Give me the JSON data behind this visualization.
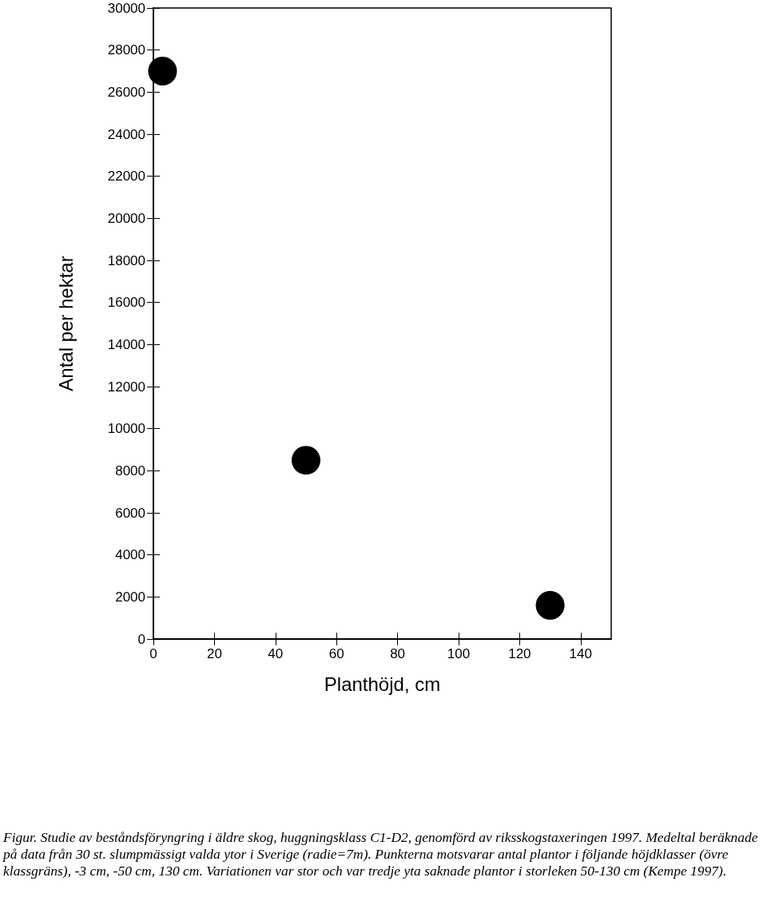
{
  "chart_data": {
    "type": "scatter",
    "xlabel": "Planthöjd, cm",
    "ylabel": "Antal per hektar",
    "x": [
      3,
      50,
      130
    ],
    "series": [
      {
        "color": "#000000",
        "values": [
          27000,
          8500,
          1600
        ]
      }
    ],
    "xlim": [
      0,
      150
    ],
    "xticks": [
      0,
      20,
      40,
      60,
      80,
      100,
      120,
      140
    ],
    "ylim": [
      0,
      30000
    ],
    "yticks": [
      0,
      2000,
      4000,
      6000,
      8000,
      10000,
      12000,
      14000,
      16000,
      18000,
      20000,
      22000,
      24000,
      26000,
      28000,
      30000
    ],
    "marker": "circle",
    "grid": false,
    "annotations": [
      "Figur. Studie av beståndsföryngring i äldre skog, huggningsklass C1-D2, genomförd av riksskogstaxeringen 1997. Medeltal beräknade på data från 30 st. slumpmässigt valda ytor i Sverige (radie=7m). Punkterna motsvarar antal plantor i följande höjdklasser (övre klassgräns), -3 cm, -50 cm, 130 cm. Variationen var stor och var tredje yta saknade plantor i storleken 50-130 cm (Kempe 1997)."
    ]
  }
}
